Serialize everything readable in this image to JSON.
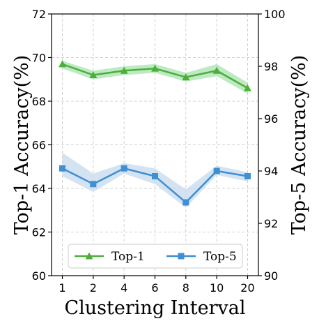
{
  "chart_data": {
    "type": "line",
    "categories": [
      "1",
      "2",
      "4",
      "6",
      "8",
      "10",
      "20"
    ],
    "xlabel": "Clustering Interval",
    "y_left": {
      "label": "Top-1 Accuracy(%)",
      "lim": [
        60,
        72
      ],
      "ticks": [
        60,
        62,
        64,
        66,
        68,
        70,
        72
      ]
    },
    "y_right": {
      "label": "Top-5 Accuracy(%)",
      "lim": [
        90,
        100
      ],
      "ticks": [
        90,
        92,
        94,
        96,
        98,
        100
      ]
    },
    "grid": true,
    "legend_position": "bottom",
    "series": [
      {
        "name": "Top-1",
        "axis": "left",
        "color": "#4daf3a",
        "band_color": "#a7e3ad",
        "marker": "triangle",
        "values": [
          69.7,
          69.2,
          69.4,
          69.5,
          69.1,
          69.4,
          68.6
        ],
        "band_upper": [
          69.85,
          69.4,
          69.6,
          69.7,
          69.3,
          69.7,
          68.85
        ],
        "band_lower": [
          69.5,
          69.0,
          69.2,
          69.3,
          68.9,
          69.15,
          68.35
        ]
      },
      {
        "name": "Top-5",
        "axis": "right",
        "color": "#3f8fd2",
        "band_color": "#c5d9ee",
        "marker": "square",
        "values": [
          94.1,
          93.5,
          94.1,
          93.8,
          92.8,
          94.0,
          93.8
        ],
        "band_upper": [
          94.7,
          93.9,
          94.3,
          94.1,
          93.3,
          94.2,
          93.95
        ],
        "band_lower": [
          93.8,
          93.2,
          93.9,
          93.5,
          92.6,
          93.85,
          93.6
        ]
      }
    ]
  }
}
